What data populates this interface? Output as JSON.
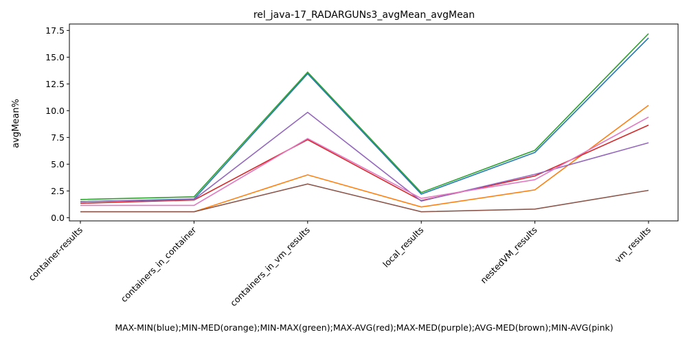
{
  "chart_data": {
    "type": "line",
    "title": "rel_java-17_RADARGUNs3_avgMean_avgMean",
    "xlabel": "MAX-MIN(blue);MIN-MED(orange);MIN-MAX(green);MAX-AVG(red);MAX-MED(purple);AVG-MED(brown);MIN-AVG(pink)",
    "ylabel": "avgMean%",
    "categories": [
      "container-results",
      "containers_in_container",
      "containers_in_vm_results",
      "local_results",
      "nestedVM_results",
      "vm_results"
    ],
    "ylim": [
      -0.3,
      18.1
    ],
    "yticks": [
      "0.0",
      "2.5",
      "5.0",
      "7.5",
      "10.0",
      "12.5",
      "15.0",
      "17.5"
    ],
    "grid": false,
    "series": [
      {
        "color": "#1f77b4",
        "values": [
          1.5,
          1.75,
          13.45,
          2.2,
          6.1,
          16.8
        ]
      },
      {
        "color": "#ff7f0e",
        "values": [
          0.55,
          0.55,
          4.0,
          1.0,
          2.6,
          10.5
        ]
      },
      {
        "color": "#2ca02c",
        "values": [
          1.7,
          1.95,
          13.6,
          2.35,
          6.3,
          17.2
        ]
      },
      {
        "color": "#d62728",
        "values": [
          1.35,
          1.65,
          7.3,
          1.6,
          3.9,
          8.65
        ]
      },
      {
        "color": "#9467bd",
        "values": [
          1.5,
          1.7,
          9.85,
          1.55,
          4.05,
          7.0
        ]
      },
      {
        "color": "#8c564b",
        "values": [
          0.55,
          0.55,
          3.15,
          0.55,
          0.8,
          2.55
        ]
      },
      {
        "color": "#e377c2",
        "values": [
          1.15,
          1.15,
          7.4,
          1.8,
          3.55,
          9.4
        ]
      }
    ]
  }
}
